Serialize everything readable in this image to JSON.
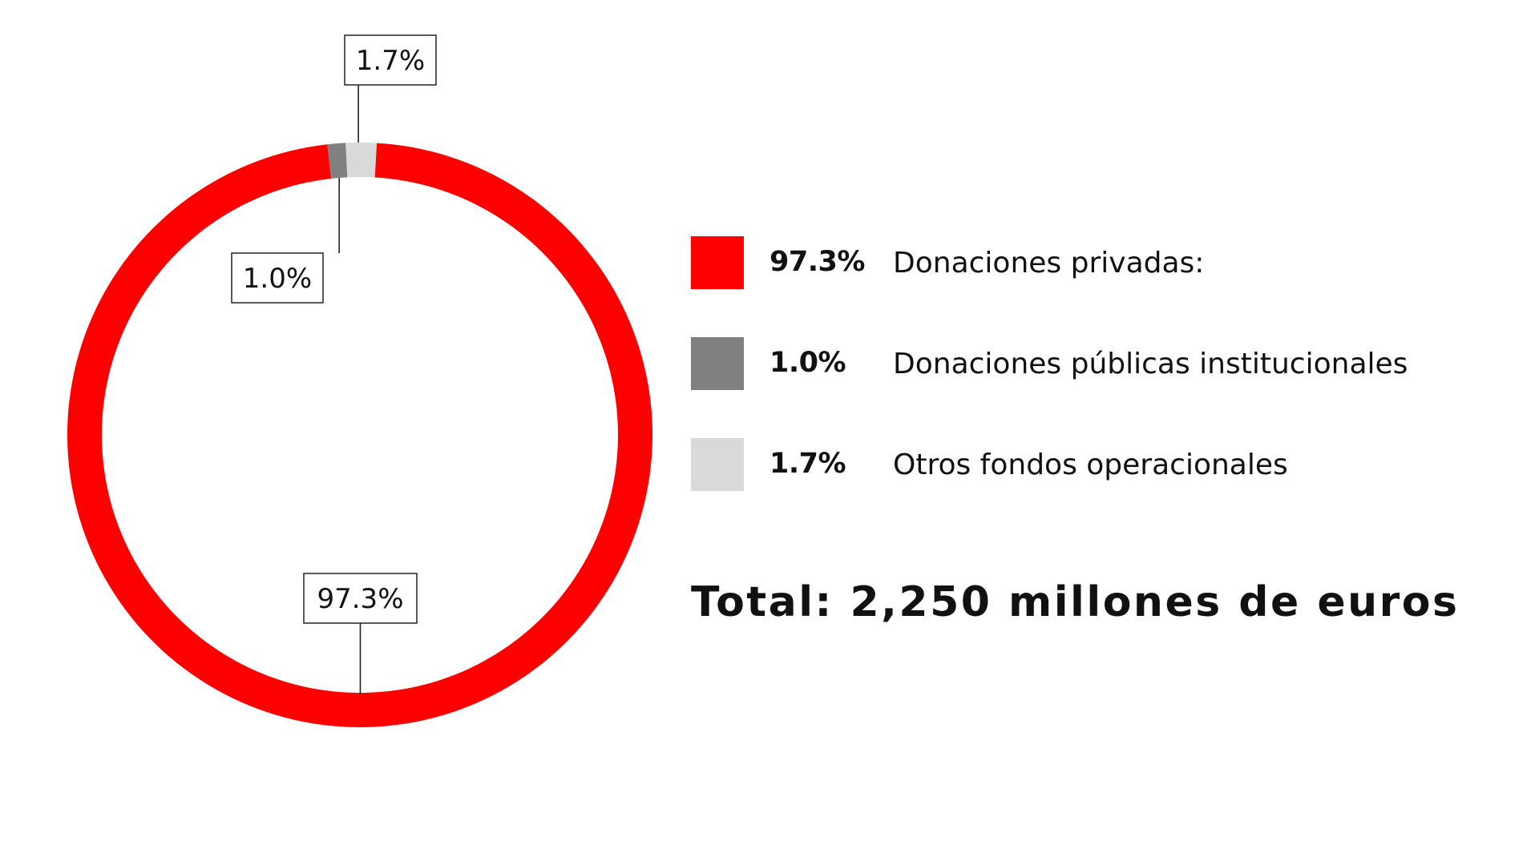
{
  "chart_data": {
    "type": "pie",
    "donut": true,
    "categories": [
      "Donaciones privadas:",
      "Donaciones públicas institucionales",
      "Otros fondos operacionales"
    ],
    "values": [
      97.3,
      1.0,
      1.7
    ],
    "value_labels": [
      "97.3%",
      "1.0%",
      "1.7%"
    ],
    "colors": [
      "#ff0000",
      "#808080",
      "#d9d9d9"
    ],
    "legend_position": "right",
    "total_text": "Total: 2,250 millones de euros"
  }
}
